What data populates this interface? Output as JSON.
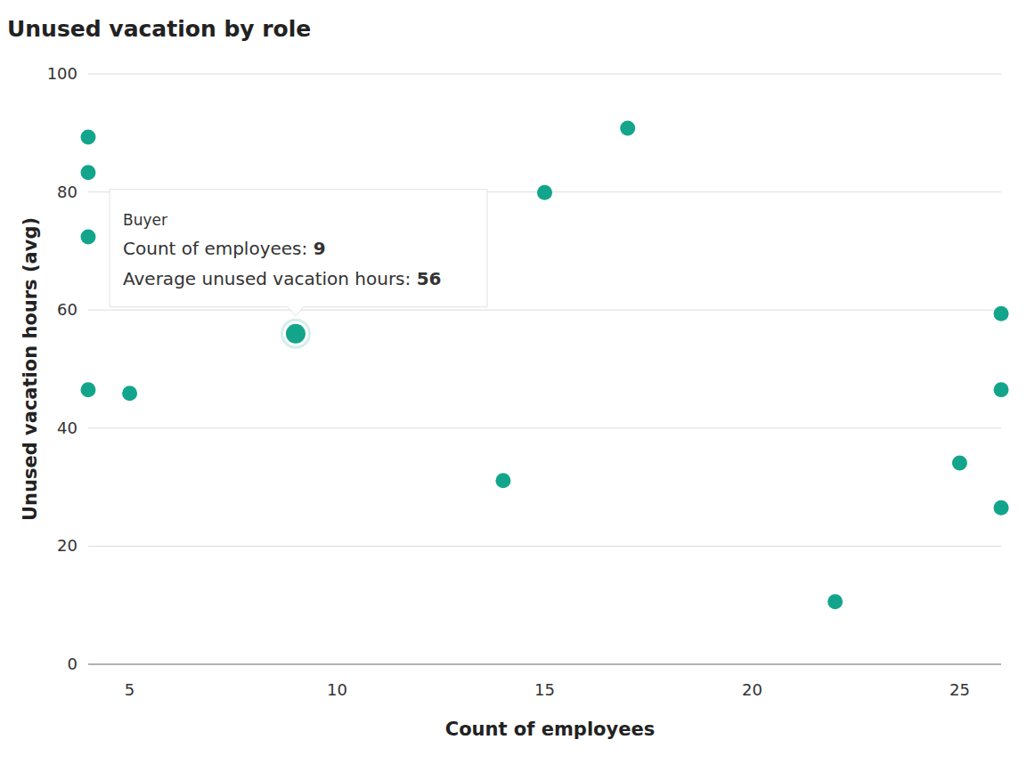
{
  "chart_data": {
    "type": "scatter",
    "title": "Unused vacation by role",
    "x_label": "Count of employees",
    "y_label": "Unused vacation hours (avg)",
    "x": [
      4,
      4,
      4,
      4,
      5,
      9,
      14,
      15,
      17,
      22,
      25,
      26,
      26,
      26
    ],
    "values": [
      89.3,
      83.3,
      72.4,
      46.5,
      45.9,
      56,
      31.1,
      79.9,
      90.8,
      10.6,
      34.1,
      59.4,
      46.5,
      26.5
    ],
    "color": "#13a58b",
    "marker": "circle",
    "xlim": [
      4,
      26
    ],
    "xticks": [
      5,
      10,
      15,
      20,
      25
    ],
    "ylim": [
      0,
      100
    ],
    "yticks": [
      0,
      20,
      40,
      60,
      80,
      100
    ],
    "grid": true,
    "annotations": [
      {
        "title": "Buyer",
        "x": 9,
        "y": 56,
        "lines": [
          {
            "label": "Count of employees:",
            "value": 9
          },
          {
            "label": "Average unused vacation hours:",
            "value": 56
          }
        ]
      }
    ]
  }
}
